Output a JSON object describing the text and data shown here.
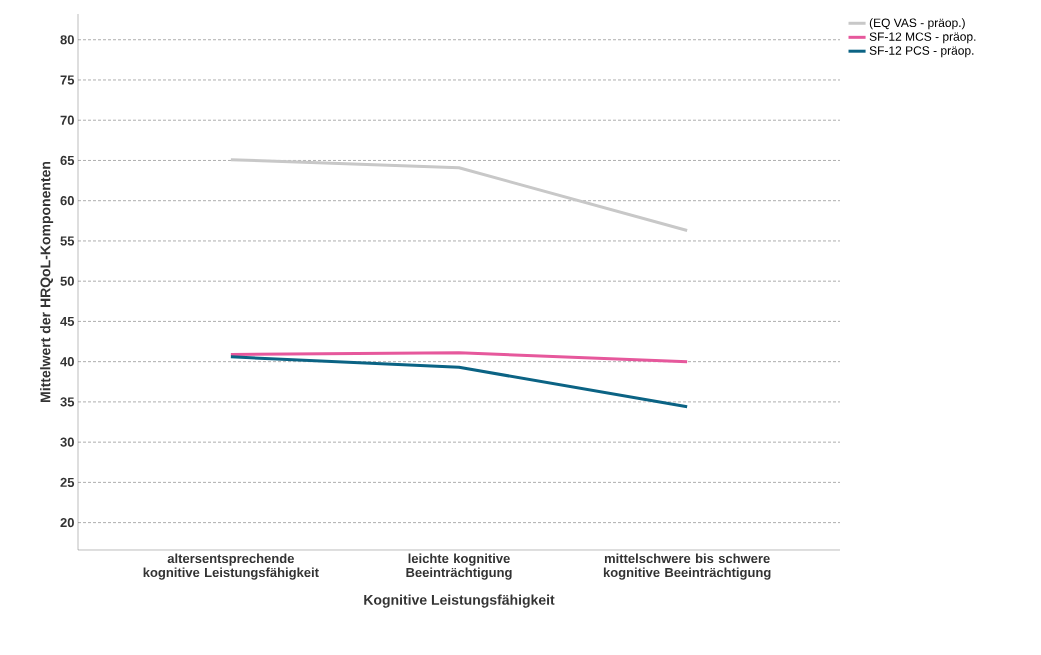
{
  "chart_data": {
    "type": "line",
    "xlabel": "Kognitive Leistungsfähigkeit",
    "ylabel": "Mittelwert der HRQoL-Komponenten",
    "categories": [
      "altersentsprechende kognitive Leistungsfähigkeit",
      "leichte kognitive Beeinträchtigung",
      "mittelschwere bis schwere kognitive Beeinträchtigung"
    ],
    "series": [
      {
        "name": "(EQ VAS - präop.)",
        "color": "#c8c8c8",
        "values": [
          65.1,
          64.1,
          56.3
        ]
      },
      {
        "name": "SF-12 MCS - präop.",
        "color": "#e6589c",
        "values": [
          40.9,
          41.1,
          40.0
        ]
      },
      {
        "name": "SF-12 PCS  - präop.",
        "color": "#0b6384",
        "values": [
          40.6,
          39.3,
          34.4
        ]
      }
    ],
    "ylim": [
      16.6,
      83.2
    ],
    "yticks": [
      20,
      25,
      30,
      35,
      40,
      45,
      50,
      55,
      60,
      65,
      70,
      75,
      80
    ],
    "grid": "y",
    "legend": "top right",
    "marker": "none",
    "line_style": "solid"
  }
}
